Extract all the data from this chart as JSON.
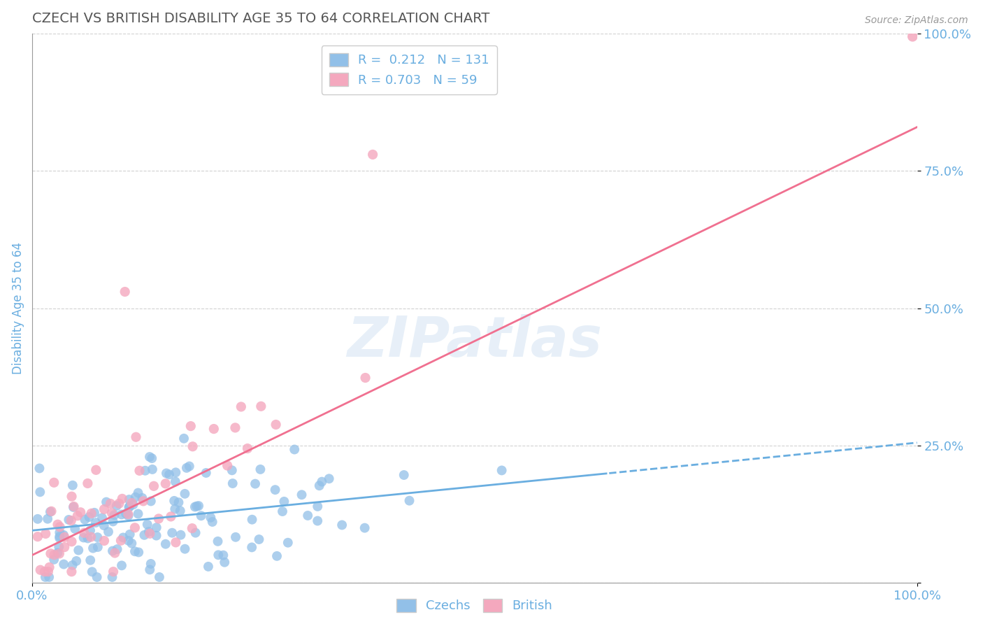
{
  "title": "CZECH VS BRITISH DISABILITY AGE 35 TO 64 CORRELATION CHART",
  "source": "Source: ZipAtlas.com",
  "ylabel": "Disability Age 35 to 64",
  "xlim": [
    0,
    1.0
  ],
  "ylim": [
    0,
    1.0
  ],
  "czechs_color": "#92c0e8",
  "british_color": "#f4a8be",
  "czechs_R": 0.212,
  "czechs_N": 131,
  "british_R": 0.703,
  "british_N": 59,
  "trend_czech_color": "#6aaee0",
  "trend_british_color": "#f07090",
  "watermark": "ZIPatlas",
  "background_color": "#ffffff",
  "grid_color": "#cccccc",
  "title_color": "#555555",
  "axis_label_color": "#6aaee0",
  "tick_label_color": "#6aaee0",
  "legend_R_color": "#6aaee0",
  "czech_trend_intercept": 0.095,
  "czech_trend_slope": 0.16,
  "czech_trend_solid_end": 0.65,
  "british_trend_intercept": 0.05,
  "british_trend_slope": 0.78,
  "british_trend_end": 1.0
}
